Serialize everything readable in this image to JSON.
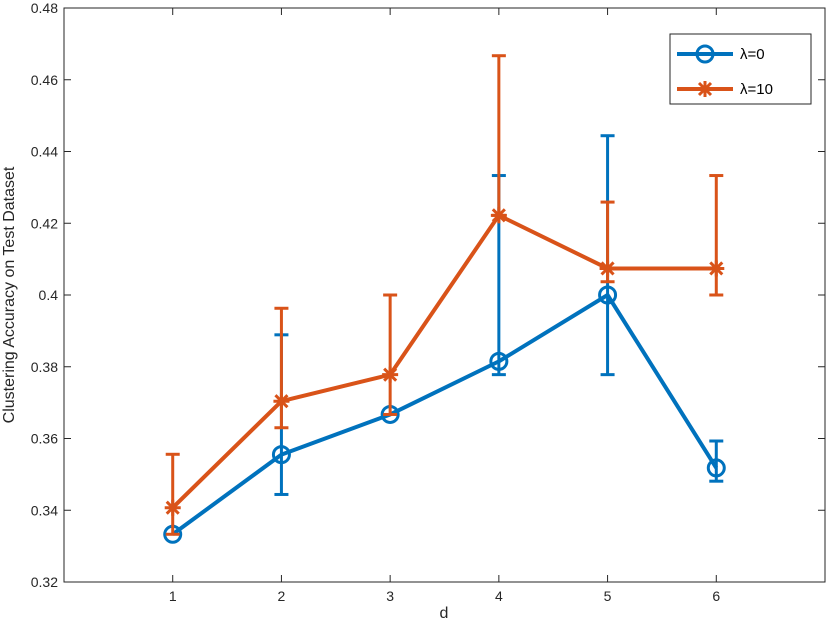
{
  "chart_data": {
    "type": "line",
    "title": "",
    "xlabel": "d",
    "ylabel": "Clustering Accuracy on Test Dataset",
    "xlim": [
      0,
      7
    ],
    "ylim": [
      0.32,
      0.48
    ],
    "xticks": [
      1,
      2,
      3,
      4,
      5,
      6
    ],
    "xtick_labels": [
      "1",
      "2",
      "3",
      "4",
      "5",
      "6"
    ],
    "yticks": [
      0.32,
      0.34,
      0.36,
      0.38,
      0.4,
      0.42,
      0.44,
      0.46,
      0.48
    ],
    "ytick_labels": [
      "0.32",
      "0.34",
      "0.36",
      "0.38",
      "0.4",
      "0.42",
      "0.44",
      "0.46",
      "0.48"
    ],
    "grid": false,
    "legend_position": "top-right",
    "series": [
      {
        "name": "λ=0",
        "marker": "circle",
        "color": "#0072BD",
        "x": [
          1,
          2,
          3,
          4,
          5,
          6
        ],
        "y": [
          0.3333,
          0.3555,
          0.3667,
          0.3815,
          0.4,
          0.3518
        ],
        "err_low": [
          0.3333,
          0.3444,
          0.3667,
          0.3778,
          0.3778,
          0.3481
        ],
        "err_high": [
          0.3333,
          0.3889,
          0.3667,
          0.4333,
          0.4444,
          0.3593
        ]
      },
      {
        "name": "λ=10",
        "marker": "asterisk",
        "color": "#D95319",
        "x": [
          1,
          2,
          3,
          4,
          5,
          6
        ],
        "y": [
          0.3407,
          0.3704,
          0.3778,
          0.4222,
          0.4074,
          0.4074
        ],
        "err_low": [
          0.3333,
          0.363,
          0.3667,
          0.4222,
          0.4037,
          0.4
        ],
        "err_high": [
          0.3556,
          0.3963,
          0.4,
          0.4667,
          0.4259,
          0.4333
        ]
      }
    ]
  }
}
